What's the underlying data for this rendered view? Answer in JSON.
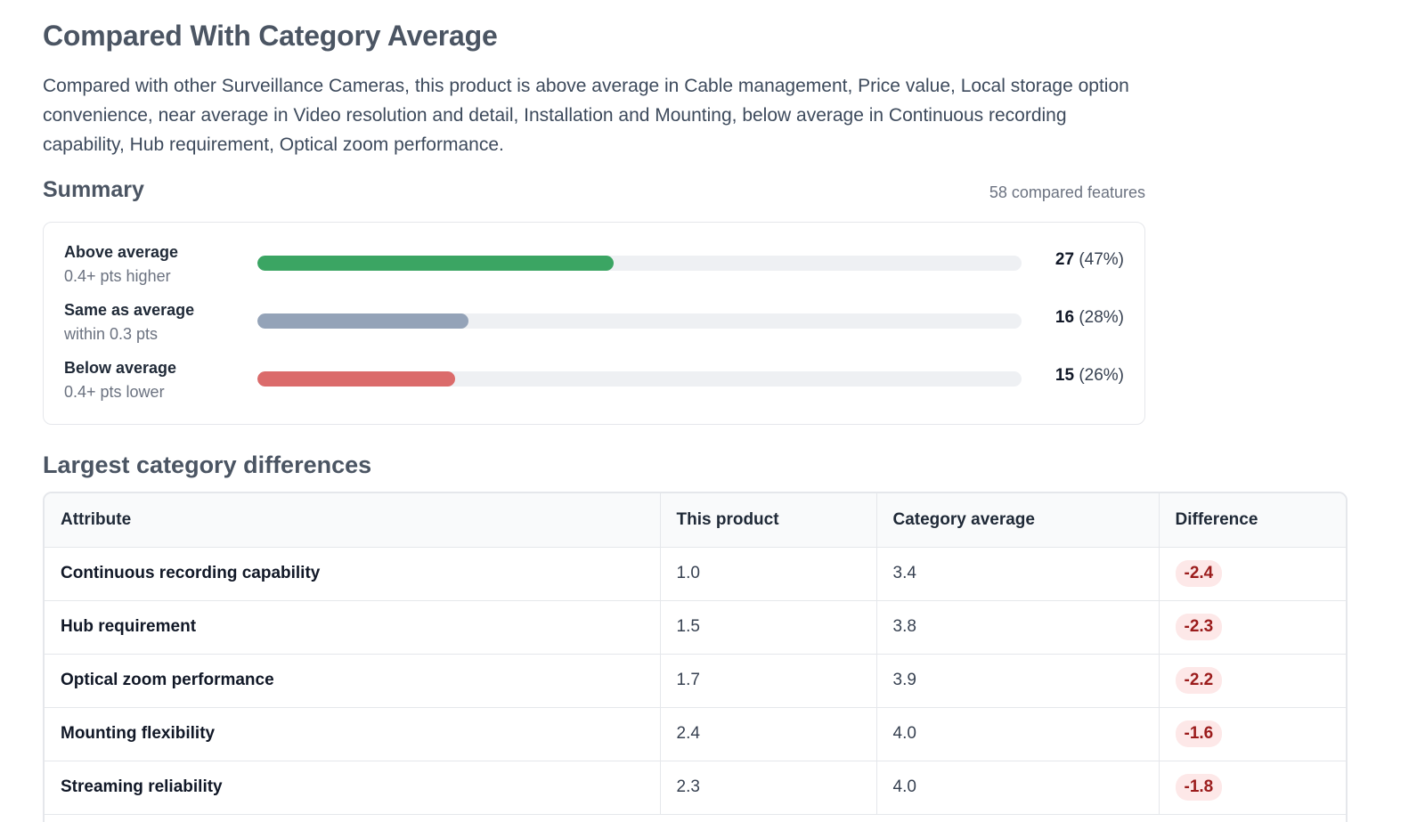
{
  "header": {
    "title": "Compared With Category Average",
    "description": "Compared with other Surveillance Cameras, this product is above average in Cable management, Price value, Local storage option convenience, near average in Video resolution and detail, Installation and Mounting, below average in Continuous recording capability, Hub requirement, Optical zoom performance."
  },
  "summary": {
    "title": "Summary",
    "compared_features": "58 compared features",
    "rows": [
      {
        "label": "Above average",
        "sub": "0.4+ pts higher",
        "count": "27",
        "pct_text": "(47%)",
        "fraction": 0.466,
        "color": "#3ba563"
      },
      {
        "label": "Same as average",
        "sub": "within 0.3 pts",
        "count": "16",
        "pct_text": "(28%)",
        "fraction": 0.276,
        "color": "#94a3b8"
      },
      {
        "label": "Below average",
        "sub": "0.4+ pts lower",
        "count": "15",
        "pct_text": "(26%)",
        "fraction": 0.259,
        "color": "#db6b6b"
      }
    ]
  },
  "differences": {
    "title": "Largest category differences",
    "columns": [
      "Attribute",
      "This product",
      "Category average",
      "Difference"
    ],
    "rows": [
      {
        "attribute": "Continuous recording capability",
        "product": "1.0",
        "average": "3.4",
        "difference": "-2.4"
      },
      {
        "attribute": "Hub requirement",
        "product": "1.5",
        "average": "3.8",
        "difference": "-2.3"
      },
      {
        "attribute": "Optical zoom performance",
        "product": "1.7",
        "average": "3.9",
        "difference": "-2.2"
      },
      {
        "attribute": "Mounting flexibility",
        "product": "2.4",
        "average": "4.0",
        "difference": "-1.6"
      },
      {
        "attribute": "Streaming reliability",
        "product": "2.3",
        "average": "4.0",
        "difference": "-1.8"
      }
    ]
  }
}
